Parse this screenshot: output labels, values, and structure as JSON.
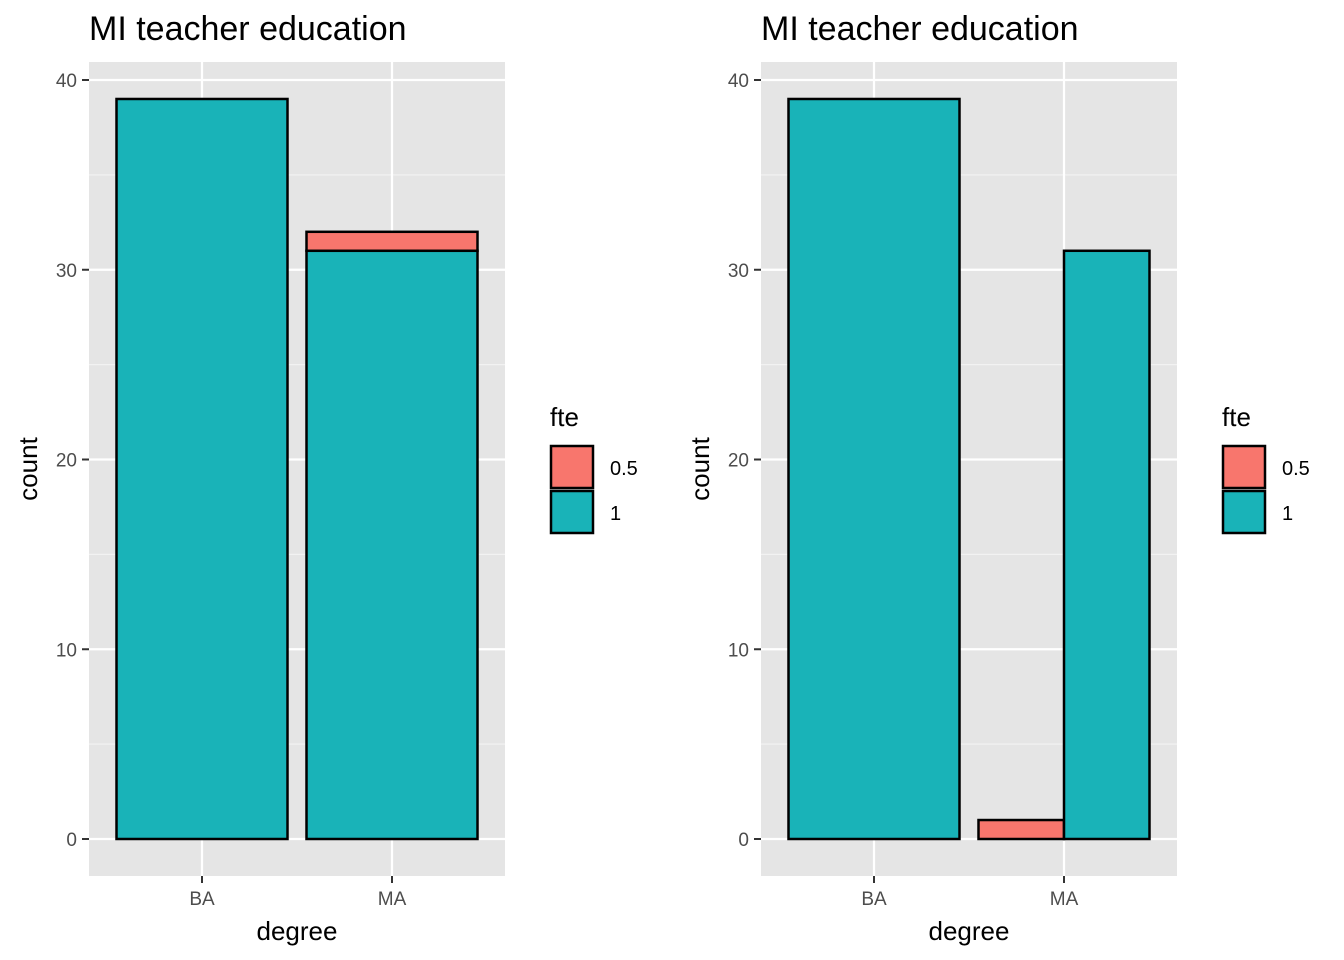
{
  "chart_data": [
    {
      "type": "bar",
      "variant": "stacked",
      "title": "MI teacher education",
      "xlabel": "degree",
      "ylabel": "count",
      "categories": [
        "BA",
        "MA"
      ],
      "series": [
        {
          "name": "0.5",
          "values": [
            0,
            1
          ]
        },
        {
          "name": "1",
          "values": [
            39,
            31
          ]
        }
      ],
      "ylim": [
        0,
        40
      ],
      "yticks": [
        "0",
        "10",
        "20",
        "30",
        "40"
      ],
      "grid": true,
      "legend": {
        "title": "fte",
        "position": "right",
        "entries": [
          "0.5",
          "1"
        ]
      }
    },
    {
      "type": "bar",
      "variant": "dodged",
      "title": "MI teacher education",
      "xlabel": "degree",
      "ylabel": "count",
      "categories": [
        "BA",
        "MA"
      ],
      "series": [
        {
          "name": "0.5",
          "values": [
            0,
            1
          ]
        },
        {
          "name": "1",
          "values": [
            39,
            31
          ]
        }
      ],
      "ylim": [
        0,
        40
      ],
      "yticks": [
        "0",
        "10",
        "20",
        "30",
        "40"
      ],
      "grid": true,
      "legend": {
        "title": "fte",
        "position": "right",
        "entries": [
          "0.5",
          "1"
        ]
      }
    }
  ],
  "colors": {
    "fte_0_5": "#F8766D",
    "fte_1": "#19B3B8",
    "panel": "#E5E5E5",
    "grid": "#FFFFFF"
  }
}
